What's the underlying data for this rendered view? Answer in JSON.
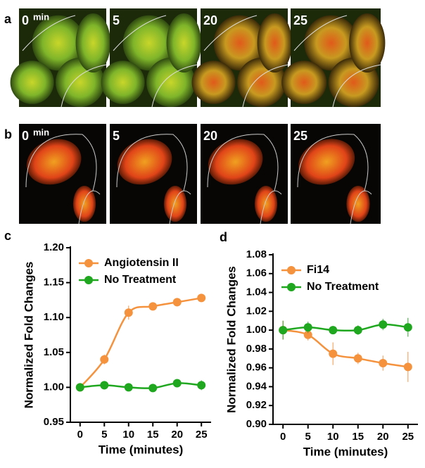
{
  "figure": {
    "panels": [
      {
        "letter": "a",
        "frames": [
          "0",
          "5",
          "20",
          "25"
        ],
        "unit": "min"
      },
      {
        "letter": "b",
        "frames": [
          "0",
          "5",
          "20",
          "25"
        ],
        "unit": "min"
      }
    ]
  },
  "chart_data": [
    {
      "type": "line",
      "panel_label": "c",
      "x_label": "Time (minutes)",
      "y_label": "Normalized Fold Changes",
      "x": [
        0,
        5,
        10,
        15,
        20,
        25
      ],
      "xlim": [
        -2,
        27
      ],
      "xticks": [
        0,
        5,
        10,
        15,
        20,
        25
      ],
      "ylim": [
        0.95,
        1.2
      ],
      "yticks": [
        0.95,
        {
          "value": 1,
          "label": "1.00"
        },
        1.05,
        {
          "value": 1.1,
          "label": "1.10"
        },
        1.15,
        {
          "value": 1.2,
          "label": "1.20"
        }
      ],
      "series": [
        {
          "name": "Angiotensin II",
          "color": "#f5923e",
          "values": [
            1.0,
            1.04,
            1.107,
            1.116,
            1.122,
            1.128
          ],
          "errors": [
            0.002,
            0.007,
            0.01,
            0.004,
            0.006,
            0.004
          ]
        },
        {
          "name": "No Treatment",
          "color": "#1fa81f",
          "values": [
            1.0,
            1.003,
            1.0,
            0.999,
            1.006,
            1.003
          ],
          "errors": [
            0.004,
            0.006,
            0.004,
            0.004,
            0.004,
            0.007
          ]
        }
      ]
    },
    {
      "type": "line",
      "panel_label": "d",
      "x_label": "Time (minutes)",
      "y_label": "Normalized Fold Changes",
      "x": [
        0,
        5,
        10,
        15,
        20,
        25
      ],
      "xlim": [
        -2,
        27
      ],
      "xticks": [
        0,
        5,
        10,
        15,
        20,
        25
      ],
      "ylim": [
        0.9,
        1.08
      ],
      "yticks": [
        {
          "value": 0.9,
          "label": "0.90"
        },
        0.92,
        0.94,
        0.96,
        0.98,
        {
          "value": 1,
          "label": "1.00"
        },
        1.02,
        1.04,
        1.06,
        1.08
      ],
      "series": [
        {
          "name": "Fi14",
          "color": "#f5923e",
          "values": [
            1.0,
            0.995,
            0.975,
            0.97,
            0.965,
            0.961
          ],
          "errors": [
            0.01,
            0.006,
            0.012,
            0.006,
            0.008,
            0.016
          ]
        },
        {
          "name": "No Treatment",
          "color": "#1fa81f",
          "values": [
            1.0,
            1.003,
            1.0,
            1.0,
            1.006,
            1.003
          ],
          "errors": [
            0.01,
            0.006,
            0.004,
            0.005,
            0.006,
            0.01
          ]
        }
      ]
    }
  ]
}
